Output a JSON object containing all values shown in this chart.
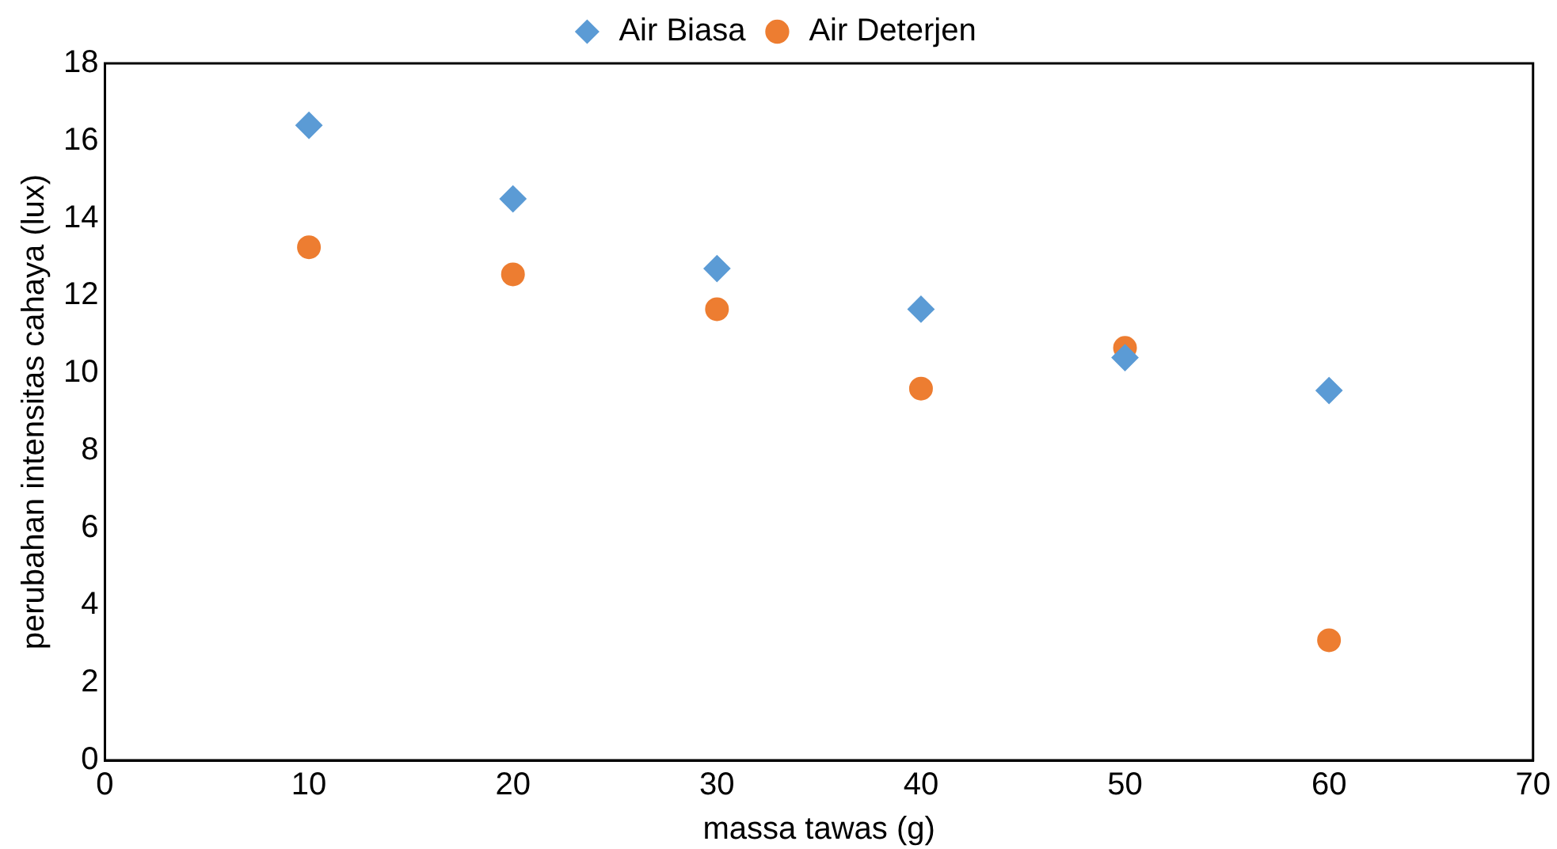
{
  "chart_data": {
    "type": "scatter",
    "xlabel": "massa tawas (g)",
    "ylabel": "perubahan intensitas cahaya (lux)",
    "x": [
      10,
      20,
      30,
      40,
      50,
      60
    ],
    "series": [
      {
        "name": "Air Biasa",
        "color": "#5b9bd5",
        "marker": "diamond",
        "values": [
          16.4,
          14.5,
          12.7,
          11.65,
          10.4,
          9.55
        ]
      },
      {
        "name": "Air Deterjen",
        "color": "#ed7d31",
        "marker": "circle",
        "values": [
          13.25,
          12.55,
          11.65,
          9.6,
          10.65,
          3.1
        ]
      }
    ],
    "xlim": [
      0,
      70
    ],
    "xticks": [
      0,
      10,
      20,
      30,
      40,
      50,
      60,
      70
    ],
    "ylim": [
      0,
      18
    ],
    "yticks": [
      0,
      2,
      4,
      6,
      8,
      10,
      12,
      14,
      16,
      18
    ],
    "grid": false,
    "legend": "top"
  }
}
